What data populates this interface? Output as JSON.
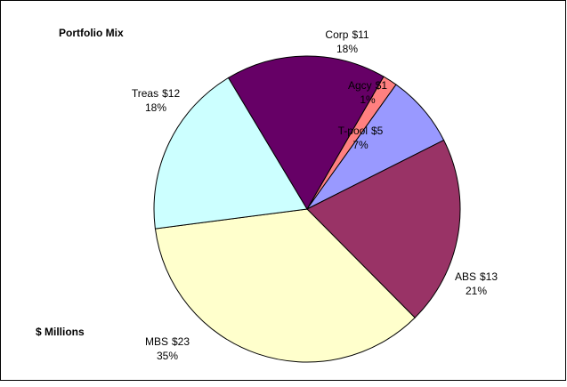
{
  "chart_data": {
    "type": "pie",
    "title": "Portfolio Mix",
    "annotation": "$ Millions",
    "categories": [
      "Agcy",
      "T-pool",
      "ABS",
      "MBS",
      "Treas",
      "Corp"
    ],
    "values": [
      1,
      5,
      13,
      23,
      12,
      11
    ],
    "value_labels": [
      "$1",
      "$5",
      "$13",
      "$23",
      "$12",
      "$11"
    ],
    "percents": [
      1,
      7,
      21,
      35,
      18,
      18
    ],
    "colors": [
      "#ff8080",
      "#9999ff",
      "#993366",
      "#ffffcc",
      "#ccffff",
      "#660066"
    ]
  }
}
